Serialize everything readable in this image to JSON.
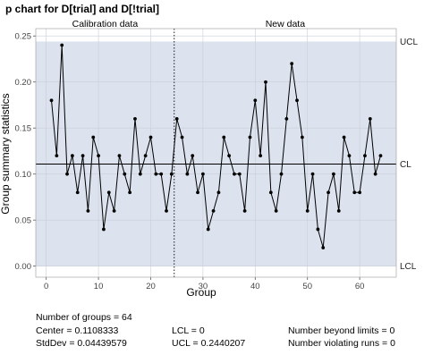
{
  "chart_data": {
    "type": "line",
    "title": "p chart for D[trial] and D[!trial]",
    "xlabel": "Group",
    "ylabel": "Group summary statistics",
    "xlim": [
      -2,
      67
    ],
    "ylim": [
      -0.012,
      0.258
    ],
    "x_ticks": [
      0,
      10,
      20,
      30,
      40,
      50,
      60
    ],
    "y_ticks": [
      0.0,
      0.05,
      0.1,
      0.15,
      0.2,
      0.25
    ],
    "y_tick_labels": [
      "0.00",
      "0.05",
      "0.10",
      "0.15",
      "0.20",
      "0.25"
    ],
    "sections": [
      {
        "label": "Calibration data",
        "x_range": [
          1,
          24
        ]
      },
      {
        "label": "New data",
        "x_range": [
          25,
          64
        ]
      }
    ],
    "divider_x": 24.5,
    "limits": [
      {
        "label": "UCL",
        "value": 0.2440207
      },
      {
        "label": "CL",
        "value": 0.1108333
      },
      {
        "label": "LCL",
        "value": 0
      }
    ],
    "grid": true,
    "series": [
      {
        "x": [
          1,
          2,
          3,
          4,
          5,
          6,
          7,
          8,
          9,
          10,
          11,
          12,
          13,
          14,
          15,
          16,
          17,
          18,
          19,
          20,
          21,
          22,
          23,
          24,
          25,
          26,
          27,
          28,
          29,
          30,
          31,
          32,
          33,
          34,
          35,
          36,
          37,
          38,
          39,
          40,
          41,
          42,
          43,
          44,
          45,
          46,
          47,
          48,
          49,
          50,
          51,
          52,
          53,
          54,
          55,
          56,
          57,
          58,
          59,
          60,
          61,
          62,
          63,
          64
        ],
        "values": [
          0.18,
          0.12,
          0.24,
          0.1,
          0.12,
          0.08,
          0.12,
          0.06,
          0.14,
          0.12,
          0.04,
          0.08,
          0.06,
          0.12,
          0.1,
          0.08,
          0.16,
          0.1,
          0.12,
          0.14,
          0.1,
          0.1,
          0.06,
          0.1,
          0.16,
          0.14,
          0.1,
          0.12,
          0.08,
          0.1,
          0.04,
          0.06,
          0.08,
          0.14,
          0.12,
          0.1,
          0.1,
          0.06,
          0.14,
          0.18,
          0.12,
          0.2,
          0.08,
          0.06,
          0.1,
          0.16,
          0.22,
          0.18,
          0.14,
          0.06,
          0.1,
          0.04,
          0.02,
          0.08,
          0.1,
          0.06,
          0.14,
          0.12,
          0.08,
          0.08,
          0.12,
          0.16,
          0.1,
          0.12
        ]
      }
    ]
  },
  "stats": {
    "groups": "Number of groups = 64",
    "center": "Center = 0.1108333",
    "stddev": "StdDev = 0.04439579",
    "lcl": "LCL = 0",
    "ucl": "UCL = 0.2440207",
    "beyond": "Number beyond limits = 0",
    "violating": "Number violating runs = 0"
  }
}
